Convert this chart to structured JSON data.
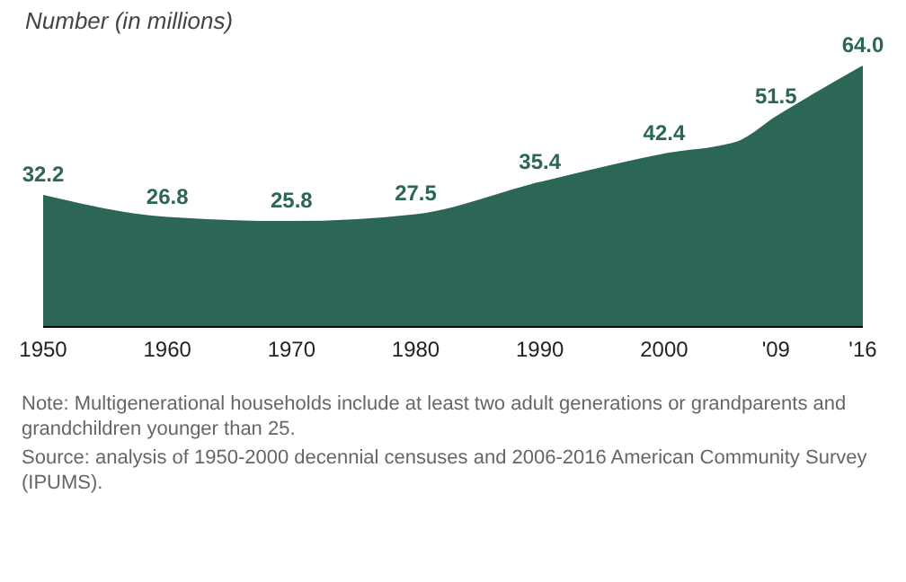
{
  "chart_data": {
    "type": "area",
    "title": "Number (in millions)",
    "x": [
      1950,
      1960,
      1970,
      1980,
      1990,
      2000,
      2006,
      2009,
      2012,
      2016
    ],
    "values": [
      32.2,
      26.8,
      25.8,
      27.5,
      35.4,
      42.4,
      45.5,
      51.5,
      57,
      64.0
    ],
    "value_labels": [
      "32.2",
      "26.8",
      "25.8",
      "27.5",
      "35.4",
      "42.4",
      null,
      "51.5",
      null,
      "64.0"
    ],
    "color": "#2c6657",
    "xlim": [
      1950,
      2016
    ],
    "xticks": [
      1950,
      1960,
      1970,
      1980,
      1990,
      2000,
      {
        "value": 2009,
        "label": "'09"
      },
      {
        "value": 2016,
        "label": "'16"
      }
    ],
    "grid": false,
    "annotations": [
      "Note: Multigenerational households include at least two adult generations or grandparents and grandchildren younger than 25.",
      "Source: analysis of 1950-2000 decennial censuses and 2006-2016 American Community Survey (IPUMS)."
    ]
  }
}
